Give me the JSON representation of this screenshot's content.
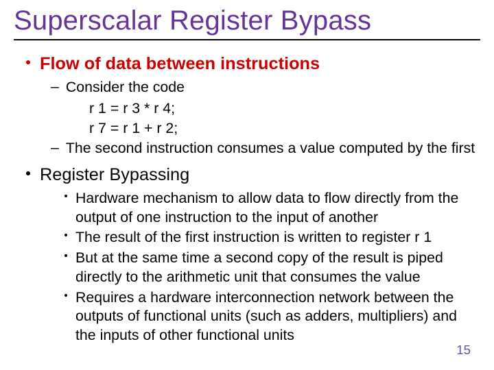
{
  "colors": {
    "title": "#663399",
    "h1": "#cc0000",
    "body": "#000000",
    "pagenum": "#5b5b9e",
    "background": "#ffffff",
    "rule": "#000000"
  },
  "fonts": {
    "title_family": "Trebuchet MS",
    "body_family": "Verdana",
    "title_size_pt": 30,
    "l1_size_pt": 19,
    "l2_size_pt": 16,
    "l3_size_pt": 16,
    "code_size_pt": 16,
    "pagenum_size_pt": 14
  },
  "title": "Superscalar Register Bypass",
  "sections": [
    {
      "heading": "Flow of data between instructions",
      "heading_bold": true,
      "heading_color": "#cc0000",
      "items": [
        {
          "type": "dash",
          "text": "Consider the code",
          "code": [
            "r 1 = r 3 * r 4;",
            "r 7 = r 1 + r 2;"
          ]
        },
        {
          "type": "dash",
          "text": "The second instruction consumes a value computed by the first"
        }
      ]
    },
    {
      "heading": "Register Bypassing",
      "heading_bold": false,
      "heading_color": "#000000",
      "items": [
        {
          "type": "dot",
          "text": "Hardware mechanism to allow data to flow directly from the output of one instruction to the input of another"
        },
        {
          "type": "dot",
          "text": "The result of the first instruction is written to register r 1"
        },
        {
          "type": "dot",
          "text": "But at the same time a second copy of the result is piped directly to the arithmetic unit that consumes the value"
        },
        {
          "type": "dot",
          "text": "Requires a hardware interconnection network between the outputs of functional units (such as adders, multipliers) and the inputs of other functional units"
        }
      ]
    }
  ],
  "page_number": "15"
}
